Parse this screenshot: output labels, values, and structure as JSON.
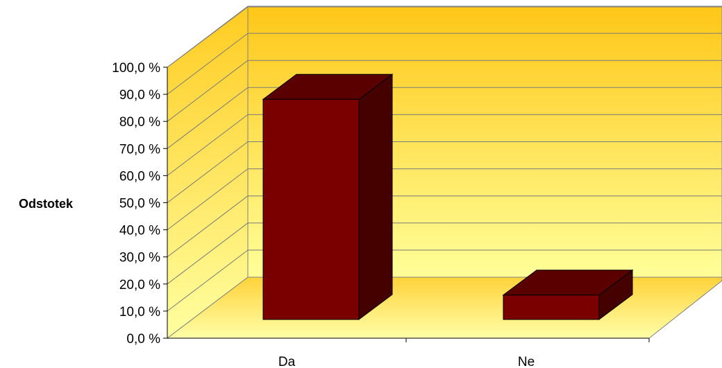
{
  "chart_data": {
    "type": "bar",
    "style": "3d-column",
    "title": "",
    "xlabel": "",
    "ylabel": "Odstotek",
    "categories": [
      "Da",
      "Ne"
    ],
    "values": [
      90.0,
      10.0
    ],
    "ylim": [
      0,
      100
    ],
    "y_ticks": [
      "0,0 %",
      "10,0 %",
      "20,0 %",
      "30,0 %",
      "40,0 %",
      "50,0 %",
      "60,0 %",
      "70,0 %",
      "80,0 %",
      "90,0 %",
      "100,0 %"
    ],
    "grid": true,
    "legend": "none",
    "colors": {
      "bar_front": "#7a0000",
      "bar_top": "#5a0000",
      "bar_side": "#450000",
      "wall_top": "#ffc718",
      "wall_bottom": "#ffff99",
      "floor_back": "#ffd23a",
      "floor_front": "#ffffa8",
      "gridline": "#7a7a7a"
    }
  }
}
